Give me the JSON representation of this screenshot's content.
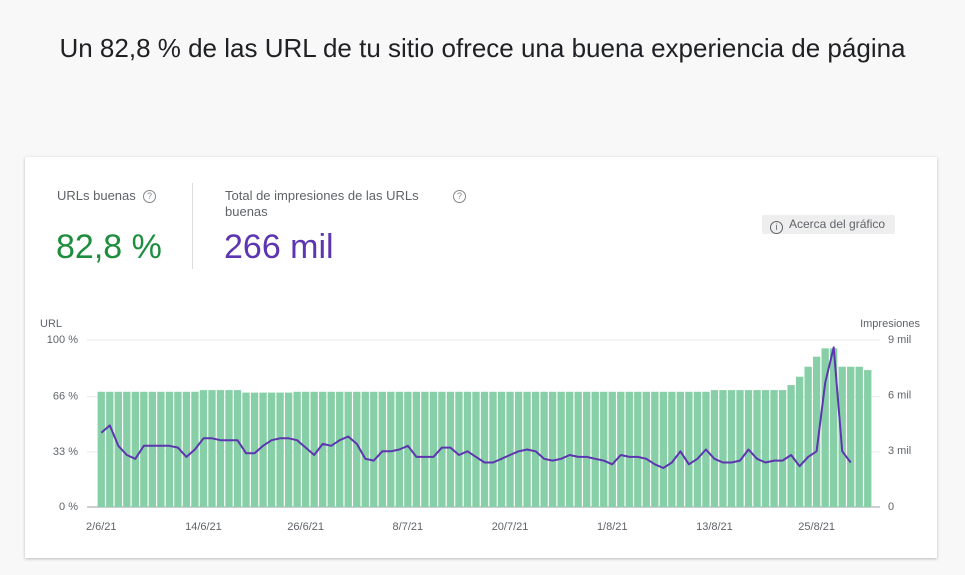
{
  "header": {
    "title": "Un 82,8 % de las URL de tu sitio ofrece una buena experiencia de página"
  },
  "summary": {
    "metrics": [
      {
        "label": "URLs buenas",
        "value": "82,8 %"
      },
      {
        "label": "Total de impresiones de las URLs buenas",
        "value": "266 mil"
      }
    ],
    "about_button": "Acerca del gráfico"
  },
  "chart_data": {
    "type": "bar_line",
    "ylabel": "URL",
    "y2label": "Impresiones",
    "categories": [
      "2/6/21",
      null,
      null,
      null,
      null,
      null,
      null,
      null,
      null,
      null,
      null,
      null,
      "14/6/21",
      null,
      null,
      null,
      null,
      null,
      null,
      null,
      null,
      null,
      null,
      null,
      "26/6/21",
      null,
      null,
      null,
      null,
      null,
      null,
      null,
      null,
      null,
      null,
      null,
      "8/7/21",
      null,
      null,
      null,
      null,
      null,
      null,
      null,
      null,
      null,
      null,
      null,
      "20/7/21",
      null,
      null,
      null,
      null,
      null,
      null,
      null,
      null,
      null,
      null,
      null,
      "1/8/21",
      null,
      null,
      null,
      null,
      null,
      null,
      null,
      null,
      null,
      null,
      null,
      "13/8/21",
      null,
      null,
      null,
      null,
      null,
      null,
      null,
      null,
      null,
      null,
      null,
      "25/8/21",
      null,
      null,
      null,
      null,
      null,
      null
    ],
    "series": [
      {
        "type": "bar",
        "color": "#87cfa6",
        "values": [
          69,
          69,
          69,
          69,
          69,
          69,
          69,
          69,
          69,
          69,
          69,
          69,
          70,
          70,
          70,
          70,
          70,
          68.5,
          68.5,
          68.5,
          68.5,
          68.5,
          68.5,
          69,
          69,
          69,
          69,
          69,
          69,
          69,
          69,
          69,
          69,
          69,
          69,
          69,
          69,
          69,
          69,
          69,
          69,
          69,
          69,
          69,
          69,
          69,
          69,
          69,
          69,
          69,
          69,
          69,
          69,
          69,
          69,
          69,
          69,
          69,
          69,
          69,
          69,
          69,
          69,
          69,
          69,
          69,
          69,
          69,
          69,
          69,
          69,
          69,
          70,
          70,
          70,
          70,
          70,
          70,
          70,
          70,
          70,
          73,
          78,
          84,
          90,
          95,
          95,
          84,
          84,
          84,
          82
        ]
      },
      {
        "type": "line",
        "axis": "y2",
        "color": "#5e35b1",
        "values": [
          4000,
          4400,
          3300,
          2800,
          2600,
          3300,
          3300,
          3300,
          3300,
          3200,
          2700,
          3100,
          3700,
          3700,
          3600,
          3600,
          3600,
          2900,
          2900,
          3300,
          3600,
          3700,
          3700,
          3600,
          3200,
          2800,
          3400,
          3300,
          3600,
          3800,
          3400,
          2600,
          2500,
          3000,
          3000,
          3100,
          3300,
          2700,
          2700,
          2700,
          3200,
          3200,
          2800,
          3000,
          2700,
          2400,
          2400,
          2600,
          2800,
          3000,
          3100,
          3000,
          2600,
          2500,
          2600,
          2800,
          2700,
          2700,
          2600,
          2500,
          2300,
          2800,
          2700,
          2700,
          2600,
          2300,
          2100,
          2400,
          3000,
          2300,
          2600,
          3100,
          2600,
          2400,
          2400,
          2500,
          3100,
          2600,
          2400,
          2500,
          2500,
          2800,
          2200,
          2700,
          3000,
          6700,
          8600,
          3000,
          2400,
          null,
          null
        ]
      }
    ],
    "ylim": [
      0,
      100
    ],
    "yticks": [
      {
        "value": 0,
        "label": "0 %"
      },
      {
        "value": 33,
        "label": "33 %"
      },
      {
        "value": 66,
        "label": "66 %"
      },
      {
        "value": 100,
        "label": "100 %"
      }
    ],
    "y2lim": [
      0,
      9000
    ],
    "y2ticks": [
      0,
      {
        "value": 3000,
        "label": "3 mil"
      },
      {
        "value": 6000,
        "label": "6 mil"
      },
      {
        "value": 9000,
        "label": "9 mil"
      }
    ],
    "grid": true
  }
}
